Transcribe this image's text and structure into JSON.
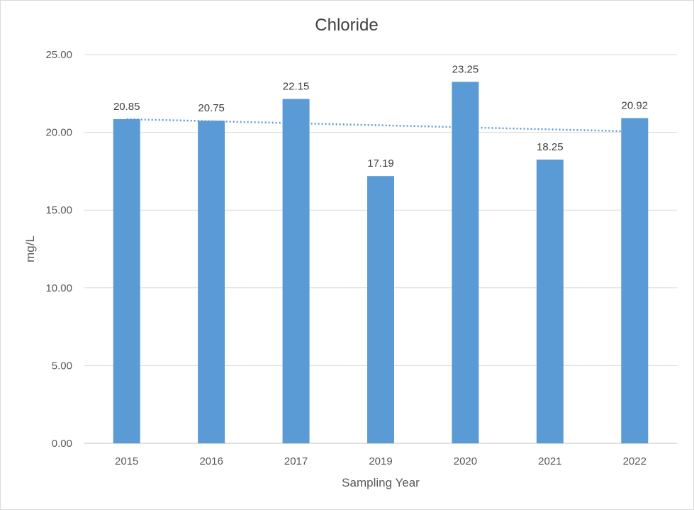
{
  "chart_data": {
    "type": "bar",
    "title": "Chloride",
    "xlabel": "Sampling Year",
    "ylabel": "mg/L",
    "categories": [
      "2015",
      "2016",
      "2017",
      "2019",
      "2020",
      "2021",
      "2022"
    ],
    "values": [
      20.85,
      20.75,
      22.15,
      17.19,
      23.25,
      18.25,
      20.92
    ],
    "value_labels": [
      "20.85",
      "20.75",
      "22.15",
      "17.19",
      "23.25",
      "18.25",
      "20.92"
    ],
    "ylim": [
      0,
      25
    ],
    "y_ticks": [
      "0.00",
      "5.00",
      "10.00",
      "15.00",
      "20.00",
      "25.00"
    ],
    "grid": true,
    "legend": "none",
    "trendline": {
      "type": "linear",
      "style": "dotted",
      "start": 20.85,
      "end": 20.06
    },
    "colors": {
      "bar": "#5b9bd5",
      "trendline": "#5b9bd5"
    }
  }
}
